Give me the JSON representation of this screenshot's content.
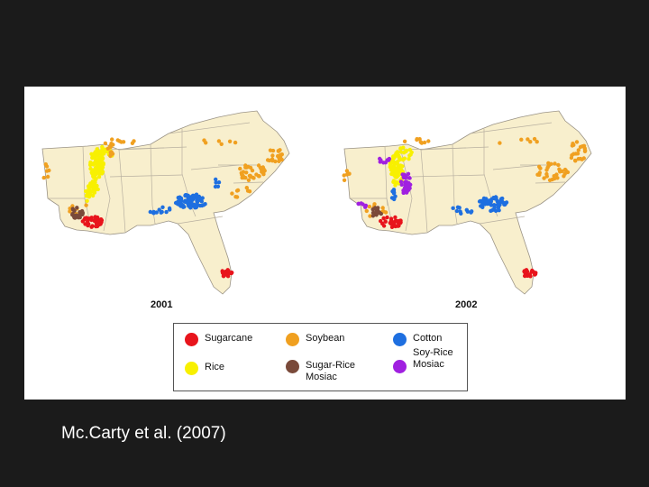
{
  "maps": [
    {
      "year": "2001",
      "name": "map-2001"
    },
    {
      "year": "2002",
      "name": "map-2002"
    }
  ],
  "colors": {
    "sugarcane": "#e8141c",
    "soybean": "#f0a020",
    "cotton": "#1e6fe0",
    "rice": "#f8f000",
    "sugar_rice": "#7a4a3a",
    "soy_rice": "#a020e0",
    "land": "#f8efcd",
    "state_border": "#b8b0a0"
  },
  "legend": {
    "items": [
      {
        "key": "sugarcane",
        "label": "Sugarcane"
      },
      {
        "key": "soybean",
        "label": "Soybean"
      },
      {
        "key": "cotton",
        "label": "Cotton"
      },
      {
        "key": "rice",
        "label": "Rice"
      },
      {
        "key": "sugar_rice",
        "label": "Sugar-Rice Mosiac"
      },
      {
        "key": "soy_rice",
        "label": "Soy-Rice Mosiac"
      }
    ]
  },
  "caption": "Mc.Carty et al. (2007)"
}
